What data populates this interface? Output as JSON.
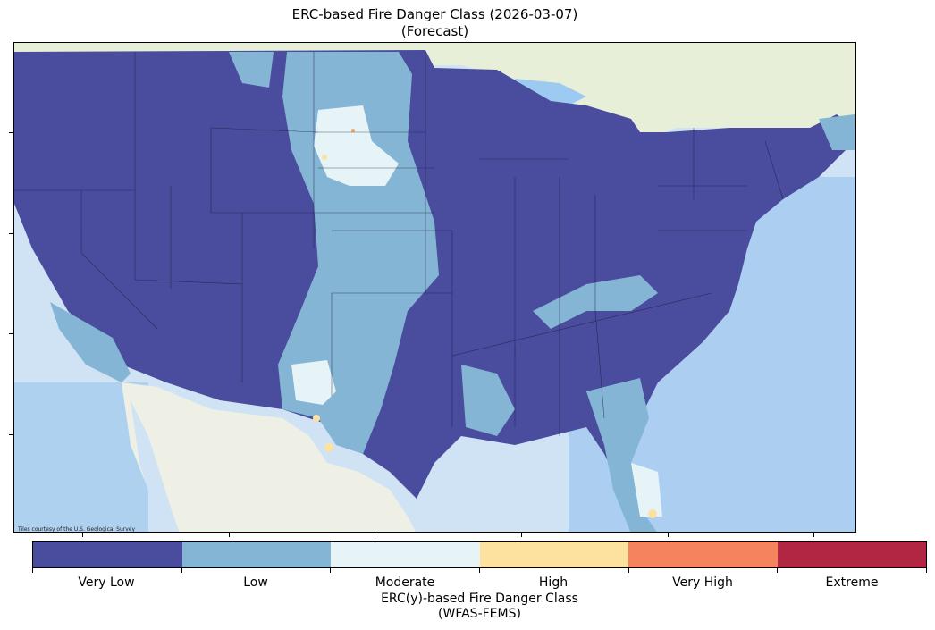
{
  "title": {
    "line1": "ERC-based Fire Danger Class (2026-03-07)",
    "line2": "(Forecast)"
  },
  "attribution": "Tiles courtesy of the U.S. Geological Survey",
  "legend": {
    "classes": [
      {
        "label": "Very Low",
        "color": "#4a4c9e"
      },
      {
        "label": "Low",
        "color": "#84b5d4"
      },
      {
        "label": "Moderate",
        "color": "#e6f4f8"
      },
      {
        "label": "High",
        "color": "#fde29f"
      },
      {
        "label": "Very High",
        "color": "#f5845e"
      },
      {
        "label": "Extreme",
        "color": "#b12643"
      }
    ],
    "title_line1": "ERC(y)-based Fire Danger Class",
    "title_line2": "(WFAS-FEMS)"
  },
  "basemap": {
    "ocean_color": "#cfe3f5",
    "land_color": "#eef0e6",
    "canada_color": "#e8efd8"
  }
}
